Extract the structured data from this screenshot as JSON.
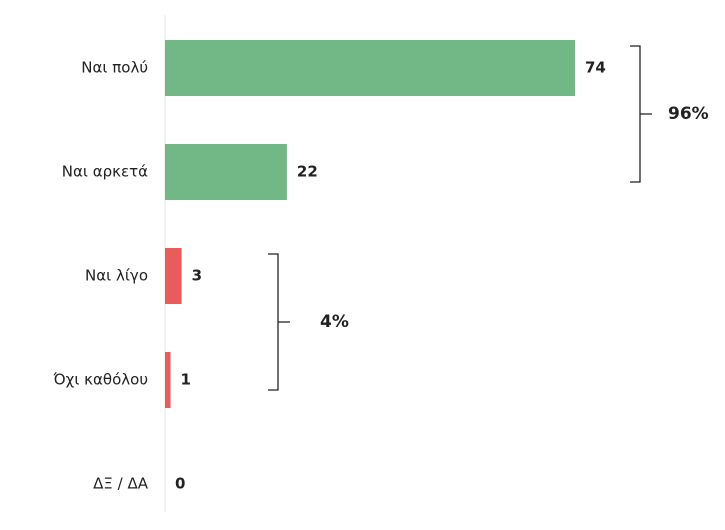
{
  "chart_data": {
    "type": "barh",
    "categories": [
      "Ναι πολύ",
      "Ναι αρκετά",
      "Ναι λίγο",
      "Όχι καθόλου",
      "ΔΞ / ΔΑ"
    ],
    "values": [
      74,
      22,
      3,
      1,
      0
    ],
    "colors": [
      "#72b886",
      "#72b886",
      "#e85c5c",
      "#e85c5c",
      "#e85c5c"
    ],
    "annotations": [
      "96%",
      "4%"
    ]
  }
}
